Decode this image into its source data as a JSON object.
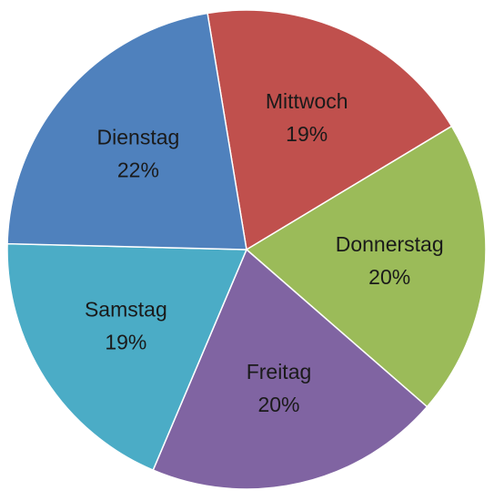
{
  "chart_data": {
    "type": "pie",
    "categories": [
      "Mittwoch",
      "Donnerstag",
      "Freitag",
      "Samstag",
      "Dienstag"
    ],
    "values": [
      19,
      20,
      20,
      19,
      22
    ],
    "value_labels": [
      "19%",
      "20%",
      "20%",
      "19%",
      "22%"
    ],
    "colors": [
      "#c0504d",
      "#9bbb59",
      "#8064a2",
      "#4bacc6",
      "#4f81bd"
    ]
  }
}
